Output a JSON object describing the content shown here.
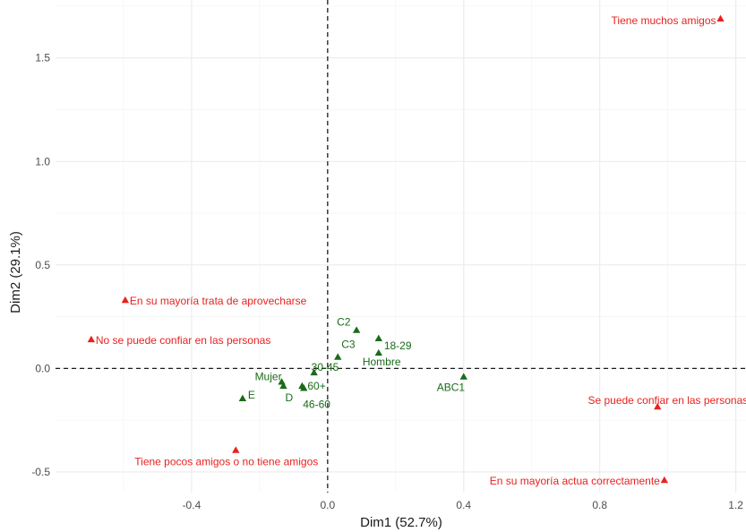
{
  "chart_data": {
    "type": "scatter",
    "title": "",
    "xlabel": "Dim1 (52.7%)",
    "ylabel": "Dim2 (29.1%)",
    "xlim": [
      -0.8,
      1.23
    ],
    "ylim": [
      -0.6,
      1.78
    ],
    "x_ticks": [
      -0.4,
      0.0,
      0.4,
      0.8,
      1.2
    ],
    "x_tick_labels": [
      "-0.4",
      "0.0",
      "0.4",
      "0.8",
      "1.2"
    ],
    "y_ticks": [
      -0.5,
      0.0,
      0.5,
      1.0,
      1.5
    ],
    "y_tick_labels": [
      "-0.5",
      "0.0",
      "0.5",
      "1.0",
      "1.5"
    ],
    "grid": true,
    "reference_lines": {
      "x": 0,
      "y": 0,
      "style": "dashed"
    },
    "legend": "none",
    "colors": {
      "red_group": "#e8221f",
      "green_group": "#1a6b1a"
    },
    "series": [
      {
        "color": "#e8221f",
        "marker": "triangle",
        "points": [
          {
            "label": "Tiene muchos amigos",
            "x": 1.155,
            "y": 1.69,
            "anchor": "end"
          },
          {
            "label": "En su mayoría trata de aprovecharse",
            "x": -0.595,
            "y": 0.33,
            "anchor": "start"
          },
          {
            "label": "No se puede confiar en las personas",
            "x": -0.695,
            "y": 0.14,
            "anchor": "start"
          },
          {
            "label": "Se puede confiar en las personas",
            "x": 0.97,
            "y": -0.185,
            "anchor": "end"
          },
          {
            "label": "Tiene pocos amigos o no tiene amigos",
            "x": -0.27,
            "y": -0.395,
            "anchor": "end"
          },
          {
            "label": "En su mayoría actua correctamente",
            "x": 0.99,
            "y": -0.54,
            "anchor": "end"
          }
        ]
      },
      {
        "color": "#1a6b1a",
        "marker": "triangle",
        "points": [
          {
            "label": "C2",
            "x": 0.085,
            "y": 0.185
          },
          {
            "label": "18-29",
            "x": 0.15,
            "y": 0.145
          },
          {
            "label": "C3",
            "x": 0.03,
            "y": 0.055
          },
          {
            "label": "Hombre",
            "x": 0.15,
            "y": 0.075
          },
          {
            "label": "30-45",
            "x": -0.04,
            "y": -0.02
          },
          {
            "label": "Mujer",
            "x": -0.135,
            "y": -0.065
          },
          {
            "label": "60+",
            "x": -0.075,
            "y": -0.085
          },
          {
            "label": "D",
            "x": -0.13,
            "y": -0.085
          },
          {
            "label": "E",
            "x": -0.25,
            "y": -0.145
          },
          {
            "label": "46-60",
            "x": -0.07,
            "y": -0.095
          },
          {
            "label": "ABC1",
            "x": 0.4,
            "y": -0.04
          }
        ]
      }
    ]
  }
}
